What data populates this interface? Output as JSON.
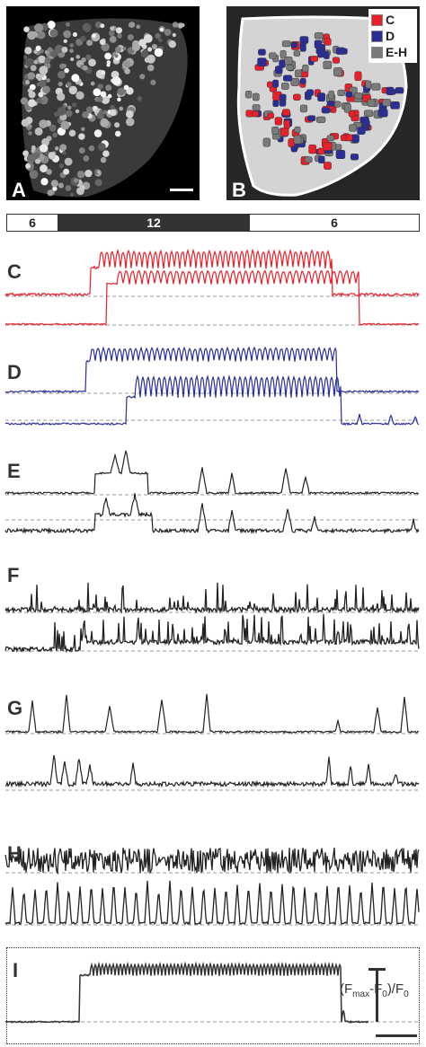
{
  "panels": {
    "A": {
      "letter": "A"
    },
    "B": {
      "letter": "B",
      "legend": [
        {
          "label": "C",
          "color": "#e8202a"
        },
        {
          "label": "D",
          "color": "#2b2f95"
        },
        {
          "label": "E-H",
          "color": "#7a7a7a"
        }
      ]
    },
    "C": {
      "letter": "C",
      "color": "#e8202a"
    },
    "D": {
      "letter": "D",
      "color": "#2b2f95"
    },
    "E": {
      "letter": "E",
      "color": "#222222"
    },
    "F": {
      "letter": "F",
      "color": "#222222"
    },
    "G": {
      "letter": "G",
      "color": "#222222"
    },
    "H": {
      "letter": "H",
      "color": "#222222"
    },
    "I": {
      "letter": "I",
      "color": "#333333",
      "scale_label_main": "(F",
      "scale_sub_max": "max",
      "scale_mid": "-F",
      "scale_sub_0": "0",
      "scale_end": ")/F",
      "scale_sub_0b": "0"
    }
  },
  "stimulus_bar": {
    "segments": [
      {
        "label": "6",
        "fill": "#ffffff",
        "text": "#222222"
      },
      {
        "label": "12",
        "fill": "#333333",
        "text": "#ffffff"
      },
      {
        "label": "6",
        "fill": "#ffffff",
        "text": "#222222"
      }
    ]
  }
}
